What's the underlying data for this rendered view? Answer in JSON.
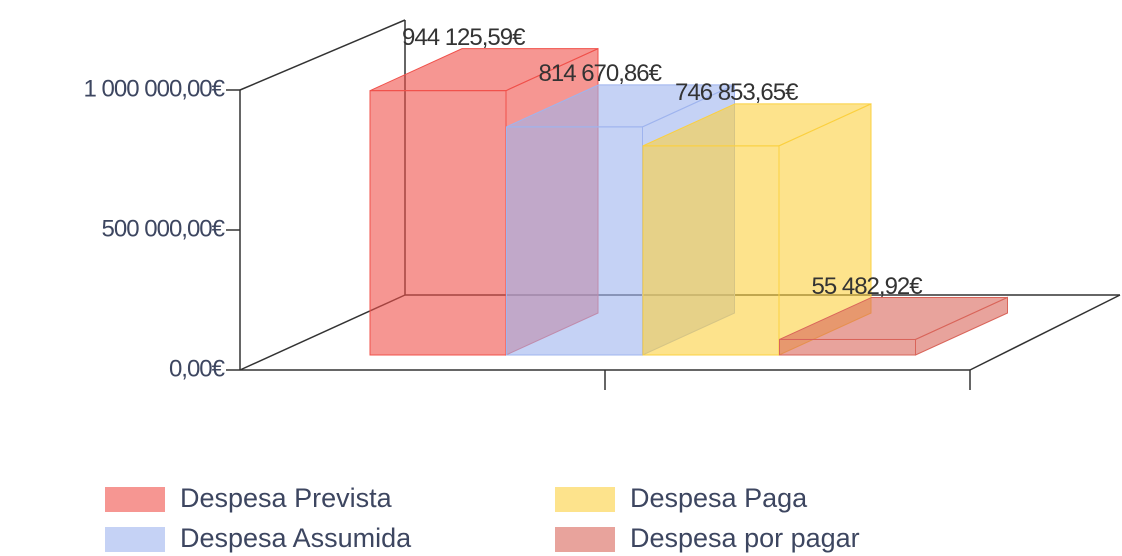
{
  "chart_data": {
    "type": "bar3d",
    "series": [
      {
        "name": "Despesa Prevista",
        "color": "#f0504a",
        "values": [
          944125.59
        ],
        "value_labels": [
          "944 125,59€"
        ]
      },
      {
        "name": "Despesa Assumida",
        "color": "#9fb4ee",
        "values": [
          814670.86
        ],
        "value_labels": [
          "814 670,86€"
        ]
      },
      {
        "name": "Despesa Paga",
        "color": "#fbd040",
        "values": [
          746853.65
        ],
        "value_labels": [
          "746 853,65€"
        ]
      },
      {
        "name": "Despesa por pagar",
        "color": "#d9655a",
        "values": [
          55482.92
        ],
        "value_labels": [
          "55 482,92€"
        ]
      }
    ],
    "ylim": [
      0,
      1000000
    ],
    "yticks": [
      {
        "value": 0,
        "label": "0,00€"
      },
      {
        "value": 500000,
        "label": "500 000,00€"
      },
      {
        "value": 1000000,
        "label": "1 000 000,00€"
      }
    ]
  }
}
